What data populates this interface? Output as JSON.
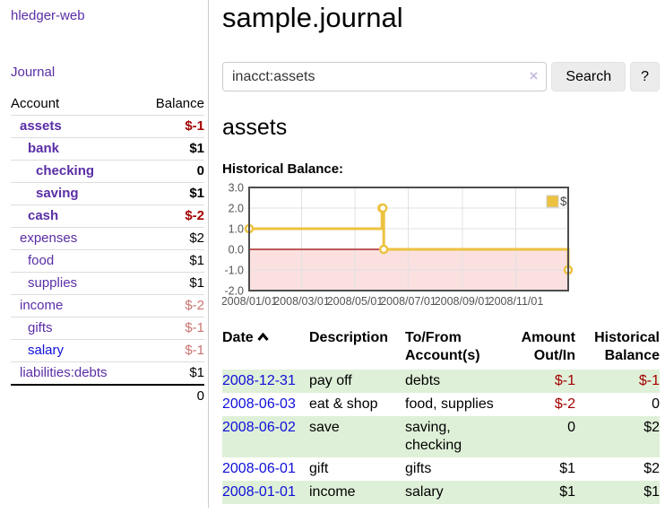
{
  "colors": {
    "purple": "#5a2ea6",
    "blue": "#0f0fd9",
    "neg-strong": "#a40000",
    "neg-muted": "#c9736f",
    "row-green": "#dff0d8",
    "chart-line": "#EDC240",
    "chart-zero": "#990000",
    "chart-neg-fill": "#fbe0e0",
    "chart-border": "#4d4d4d",
    "chart-grid": "#e2e2e2",
    "chart-text": "#545454"
  },
  "sidebar": {
    "title": "hledger-web",
    "journal_label": "Journal",
    "accounts_table": {
      "headers": [
        "Account",
        "Balance"
      ],
      "rows": [
        {
          "account": "assets",
          "balance": "$-1",
          "level": 1,
          "bold": true,
          "balance_color": "neg-strong"
        },
        {
          "account": "bank",
          "balance": "$1",
          "level": 2,
          "bold": true,
          "balance_color": ""
        },
        {
          "account": "checking",
          "balance": "0",
          "level": 3,
          "bold": true,
          "balance_color": ""
        },
        {
          "account": "saving",
          "balance": "$1",
          "level": 3,
          "bold": true,
          "balance_color": ""
        },
        {
          "account": "cash",
          "balance": "$-2",
          "level": 2,
          "bold": true,
          "balance_color": "neg-strong"
        },
        {
          "account": "expenses",
          "balance": "$2",
          "level": 1,
          "bold": false,
          "balance_color": ""
        },
        {
          "account": "food",
          "balance": "$1",
          "level": 2,
          "bold": false,
          "balance_color": ""
        },
        {
          "account": "supplies",
          "balance": "$1",
          "level": 2,
          "bold": false,
          "balance_color": ""
        },
        {
          "account": "income",
          "balance": "$-2",
          "level": 1,
          "bold": false,
          "balance_color": "neg-muted"
        },
        {
          "account": "gifts",
          "balance": "$-1",
          "level": 2,
          "bold": false,
          "balance_color": "neg-muted"
        },
        {
          "account": "salary",
          "balance": "$-1",
          "level": 2,
          "bold": false,
          "balance_color": "neg-muted",
          "link_color": "blue"
        },
        {
          "account": "liabilities:debts",
          "balance": "$1",
          "level": 1,
          "bold": false,
          "balance_color": ""
        }
      ],
      "total": "0"
    }
  },
  "main": {
    "title": "sample.journal",
    "search": {
      "value": "inacct:assets",
      "clear_icon": "×",
      "button_label": "Search",
      "help_label": "?"
    },
    "account_heading": "assets",
    "chart_heading": "Historical Balance:"
  },
  "chart_data": {
    "type": "line",
    "title": "Historical Balance:",
    "series": [
      {
        "name": "$",
        "style": "step-post line with circle markers",
        "points": [
          {
            "date": "2008/01/01",
            "value": 1
          },
          {
            "date": "2008/06/01",
            "value": 2
          },
          {
            "date": "2008/06/02",
            "value": 2
          },
          {
            "date": "2008/06/03",
            "value": 0
          },
          {
            "date": "2008/12/31",
            "value": -1
          }
        ]
      }
    ],
    "xlim": [
      "2008/01/01",
      "2008/12/31"
    ],
    "ylim": [
      -2.0,
      3.0
    ],
    "yticks": [
      3.0,
      2.0,
      1.0,
      0.0,
      -1.0,
      -2.0
    ],
    "xticks": [
      "2008/01/01",
      "2008/03/01",
      "2008/05/01",
      "2008/07/01",
      "2008/09/01",
      "2008/11/01"
    ],
    "legend": {
      "label": "$",
      "position": "top-right"
    },
    "grid": true,
    "negative_region_shaded": true
  },
  "register": {
    "headers": {
      "date": "Date",
      "description": "Description",
      "tofrom_line1": "To/From",
      "tofrom_line2": "Account(s)",
      "amount_line1": "Amount",
      "amount_line2": "Out/In",
      "balance_line1": "Historical",
      "balance_line2": "Balance"
    },
    "sort": {
      "column": "Date",
      "direction": "ascending"
    },
    "rows": [
      {
        "date": "2008-12-31",
        "description": "pay off",
        "accounts": "debts",
        "amount": "$-1",
        "balance": "$-1"
      },
      {
        "date": "2008-06-03",
        "description": "eat & shop",
        "accounts": "food, supplies",
        "amount": "$-2",
        "balance": "0"
      },
      {
        "date": "2008-06-02",
        "description": "save",
        "accounts": "saving, checking",
        "amount": "0",
        "balance": "$2"
      },
      {
        "date": "2008-06-01",
        "description": "gift",
        "accounts": "gifts",
        "amount": "$1",
        "balance": "$2"
      },
      {
        "date": "2008-01-01",
        "description": "income",
        "accounts": "salary",
        "amount": "$1",
        "balance": "$1"
      }
    ]
  }
}
